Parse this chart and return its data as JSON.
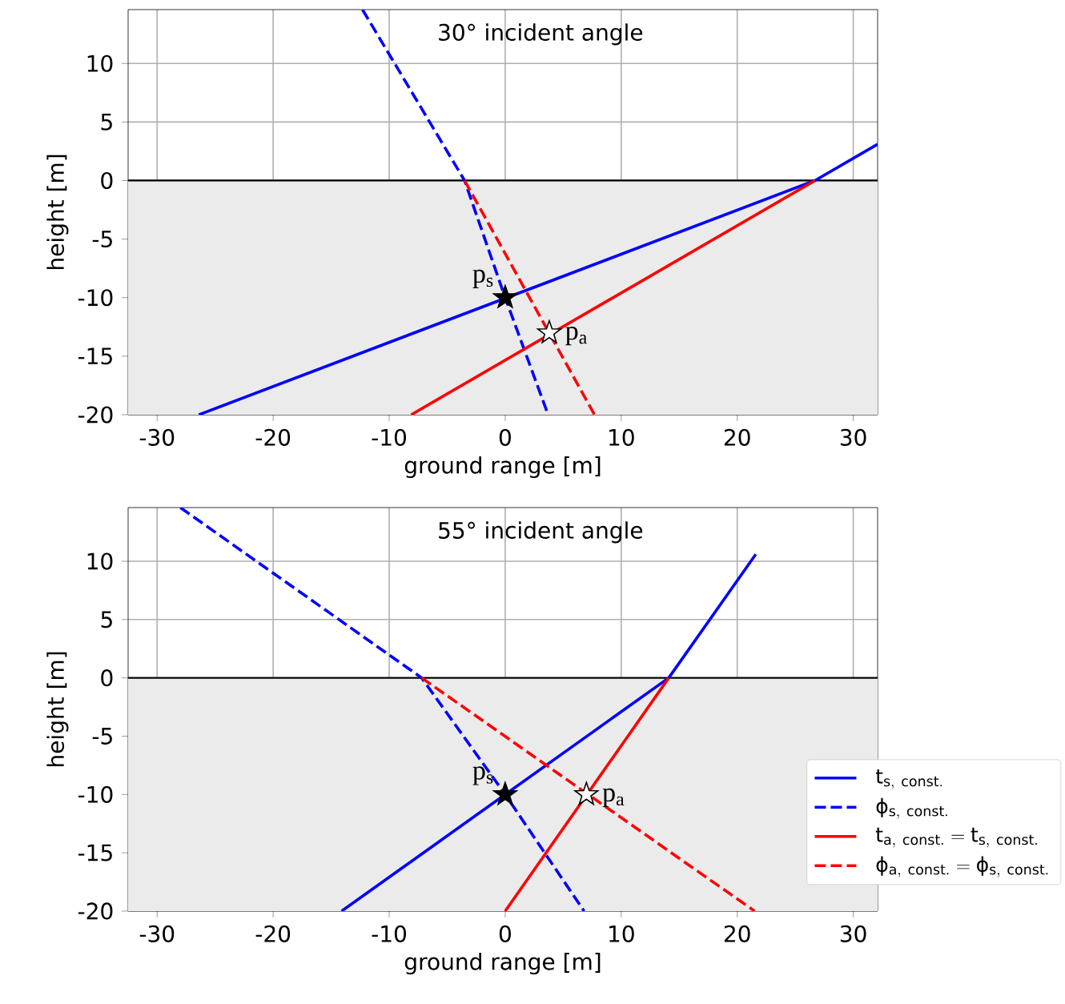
{
  "chart_data": [
    {
      "type": "line",
      "title": "30° incident angle",
      "xlabel": "ground range [m]",
      "ylabel": "height [m]",
      "xlim": [
        -32.5,
        32.1
      ],
      "ylim": [
        -20,
        14.6
      ],
      "xticks": [
        -30,
        -20,
        -10,
        0,
        10,
        20,
        30
      ],
      "yticks": [
        -20,
        -15,
        -10,
        -5,
        0,
        5,
        10
      ],
      "grid": true,
      "ref_lines": [
        {
          "axis": "y",
          "value": 0,
          "color": "#000000"
        }
      ],
      "bands": [
        {
          "axis": "y",
          "from": -20,
          "to": 0,
          "color": "#ebebeb"
        }
      ],
      "series": [
        {
          "color": "#0000ff",
          "line_style": "solid",
          "x": [
            -26.4,
            26.7,
            32.1
          ],
          "values": [
            -20,
            0,
            3.1
          ]
        },
        {
          "color": "#0000ff",
          "line_style": "dashed",
          "x": [
            -12.3,
            -3.5,
            0,
            3.7
          ],
          "values": [
            14.6,
            0,
            -10,
            -20
          ]
        },
        {
          "color": "#ff0000",
          "line_style": "solid",
          "x": [
            -8.1,
            26.7
          ],
          "values": [
            -20,
            0
          ]
        },
        {
          "color": "#ff0000",
          "line_style": "dashed",
          "x": [
            -3.5,
            7.7
          ],
          "values": [
            0,
            -20
          ]
        },
        {
          "type": "scatter",
          "marker": "star",
          "color": "#000000",
          "x": [
            0
          ],
          "values": [
            -10
          ]
        },
        {
          "type": "scatter",
          "marker": "star",
          "color": "#ffffff",
          "x": [
            3.8
          ],
          "values": [
            -13
          ]
        }
      ],
      "annotations": [
        {
          "text": "p$_{s}$",
          "x": 0,
          "y": -10
        },
        {
          "text": "p$_{a}$",
          "x": 3.8,
          "y": -13
        }
      ]
    },
    {
      "type": "line",
      "title": "55° incident angle",
      "xlabel": "ground range [m]",
      "ylabel": "height [m]",
      "xlim": [
        -32.5,
        32.1
      ],
      "ylim": [
        -20,
        14.6
      ],
      "xticks": [
        -30,
        -20,
        -10,
        0,
        10,
        20,
        30
      ],
      "yticks": [
        -20,
        -15,
        -10,
        -5,
        0,
        5,
        10
      ],
      "grid": true,
      "legend": "bottom right",
      "ref_lines": [
        {
          "axis": "y",
          "value": 0,
          "color": "#000000"
        }
      ],
      "bands": [
        {
          "axis": "y",
          "from": -20,
          "to": 0,
          "color": "#ebebeb"
        }
      ],
      "series": [
        {
          "name": "\\mathrm{t}_{\\mathrm{s,\\ const.}}",
          "color": "#0000ff",
          "line_style": "solid",
          "x": [
            -14.1,
            14.1,
            21.6
          ],
          "values": [
            -20,
            0,
            10.6
          ]
        },
        {
          "name": "\\mathrm{ϕ}_{\\mathrm{s,\\ const.}}",
          "color": "#0000ff",
          "line_style": "dashed",
          "x": [
            -28.0,
            -7.2,
            0,
            6.8
          ],
          "values": [
            14.6,
            0,
            -10,
            -20
          ]
        },
        {
          "name": "\\mathrm{t}_{\\mathrm{a,\\ const.}} = \\mathrm{t}_{\\mathrm{s,\\ const.}}",
          "color": "#ff0000",
          "line_style": "solid",
          "x": [
            0,
            14.1
          ],
          "values": [
            -20,
            0
          ]
        },
        {
          "name": "\\mathrm{ϕ}_{\\mathrm{a,\\ const.}} = \\mathrm{ϕ}_{\\mathrm{s,\\ const.}}",
          "color": "#ff0000",
          "line_style": "dashed",
          "x": [
            -7.2,
            21.5
          ],
          "values": [
            0,
            -20
          ]
        },
        {
          "type": "scatter",
          "marker": "star",
          "color": "#000000",
          "x": [
            0
          ],
          "values": [
            -10
          ]
        },
        {
          "type": "scatter",
          "marker": "star",
          "color": "#ffffff",
          "x": [
            7.0
          ],
          "values": [
            -10
          ]
        }
      ],
      "annotations": [
        {
          "text": "p$_{s}$",
          "x": 0,
          "y": -10
        },
        {
          "text": "p$_{a}$",
          "x": 7.0,
          "y": -10
        }
      ]
    }
  ]
}
